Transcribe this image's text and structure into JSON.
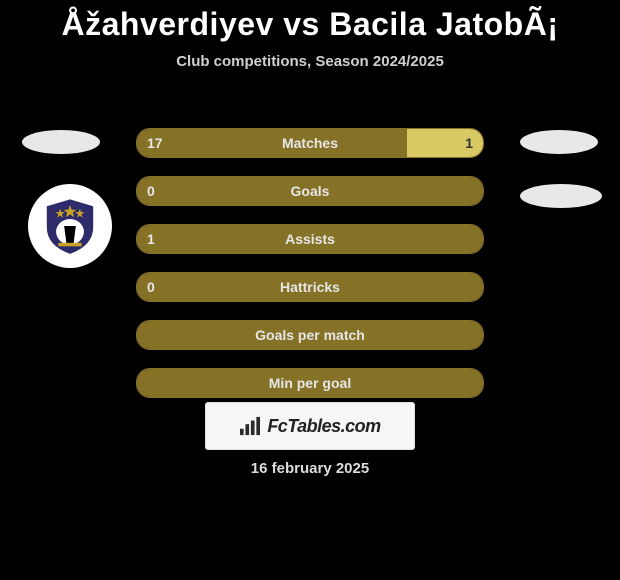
{
  "header": {
    "title": "Åžahverdiyev vs Bacila JatobÃ¡",
    "subtitle": "Club competitions, Season 2024/2025"
  },
  "stats": {
    "bar_border_color": "#857227",
    "left_fill_color": "#857227",
    "right_fill_color": "#d8c964",
    "label_color": "#e6e6e6",
    "rows": [
      {
        "label": "Matches",
        "left": "17",
        "right": "1",
        "left_pct": 78,
        "right_pct": 22
      },
      {
        "label": "Goals",
        "left": "0",
        "right": "",
        "left_pct": 100,
        "right_pct": 0
      },
      {
        "label": "Assists",
        "left": "1",
        "right": "",
        "left_pct": 100,
        "right_pct": 0
      },
      {
        "label": "Hattricks",
        "left": "0",
        "right": "",
        "left_pct": 100,
        "right_pct": 0
      },
      {
        "label": "Goals per match",
        "left": "",
        "right": "",
        "left_pct": 100,
        "right_pct": 0
      },
      {
        "label": "Min per goal",
        "left": "",
        "right": "",
        "left_pct": 100,
        "right_pct": 0
      }
    ]
  },
  "club_badge": {
    "shield_color": "#2d2b6a",
    "star_color": "#c9a227",
    "accent_color": "#000000"
  },
  "watermark": {
    "text": "FcTables.com",
    "bar_colors": [
      "#2b2b2b",
      "#2b2b2b",
      "#2b2b2b",
      "#2b2b2b"
    ]
  },
  "footer": {
    "date": "16 february 2025"
  },
  "colors": {
    "background": "#000000",
    "title_color": "#ffffff",
    "subtitle_color": "#d0d0d0",
    "ellipse_color": "#e8e8e8"
  }
}
